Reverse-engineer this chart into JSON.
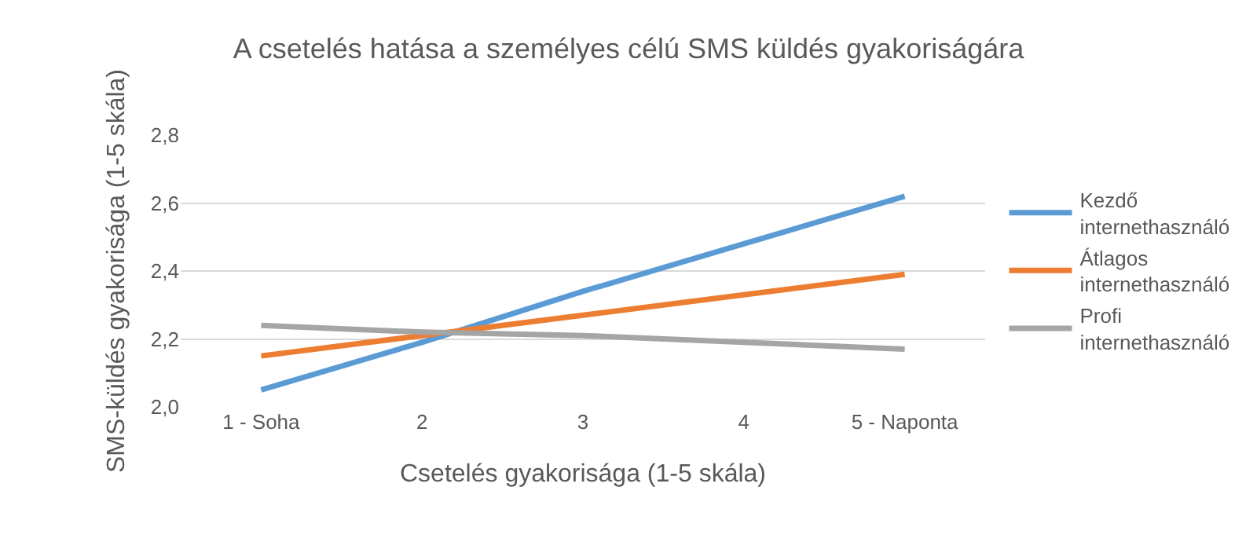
{
  "chart_data": {
    "type": "line",
    "title": "A csetelés hatása a személyes célú SMS küldés gyakoriságára",
    "xlabel": "Csetelés gyakorisága (1-5 skála)",
    "ylabel": "SMS-küldés gyakorisága (1-5 skála)",
    "categories": [
      "1 - Soha",
      "2",
      "3",
      "4",
      "5 - Naponta"
    ],
    "series": [
      {
        "name": "Kezdő internethasználó",
        "color": "#5b9bd5",
        "values": [
          2.05,
          2.19,
          2.34,
          2.48,
          2.62
        ]
      },
      {
        "name": "Átlagos internethasználó",
        "color": "#ed7d31",
        "values": [
          2.15,
          2.21,
          2.27,
          2.33,
          2.39
        ]
      },
      {
        "name": "Profi internethasználó",
        "color": "#a5a5a5",
        "values": [
          2.24,
          2.22,
          2.21,
          2.19,
          2.17
        ]
      }
    ],
    "ylim": [
      2.0,
      2.8
    ],
    "yticks": [
      {
        "value": 2.0,
        "label": "2,0"
      },
      {
        "value": 2.2,
        "label": "2,2"
      },
      {
        "value": 2.4,
        "label": "2,4"
      },
      {
        "value": 2.6,
        "label": "2,6"
      },
      {
        "value": 2.8,
        "label": "2,8"
      }
    ],
    "grid": "y",
    "legend": "right",
    "marker": "none",
    "line_style": "solid"
  }
}
